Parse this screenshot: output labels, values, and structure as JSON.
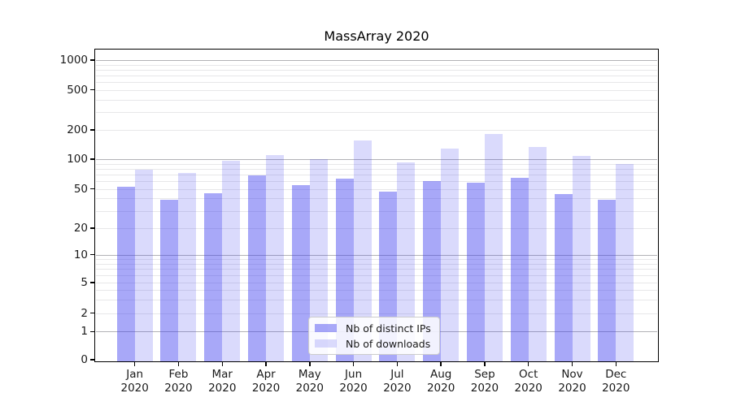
{
  "chart_data": {
    "type": "bar",
    "title": "MassArray 2020",
    "categories": [
      "Jan",
      "Feb",
      "Mar",
      "Apr",
      "May",
      "Jun",
      "Jul",
      "Aug",
      "Sep",
      "Oct",
      "Nov",
      "Dec"
    ],
    "category_sublabel": "2020",
    "series": [
      {
        "name": "Nb of distinct IPs",
        "color": "rgba(58,58,238,0.44)",
        "values": [
          53,
          39,
          45,
          69,
          55,
          64,
          47,
          60,
          58,
          65,
          44,
          39
        ]
      },
      {
        "name": "Nb of downloads",
        "color": "rgba(58,58,238,0.19)",
        "values": [
          78,
          73,
          96,
          110,
          100,
          155,
          92,
          129,
          183,
          133,
          108,
          90
        ]
      }
    ],
    "xlabel": "",
    "ylabel": "",
    "yscale": "symlog",
    "yticks": [
      0,
      1,
      2,
      5,
      10,
      20,
      50,
      100,
      200,
      500,
      1000
    ],
    "ylim": [
      0,
      1200
    ],
    "grid": true,
    "legend": {
      "position": "lower center"
    },
    "colors": {
      "grid_major": "#b2b2b6",
      "grid_minor": "#e7e7e9",
      "axis": "#000000",
      "text": "#1a1a1a",
      "background": "#ffffff"
    }
  }
}
